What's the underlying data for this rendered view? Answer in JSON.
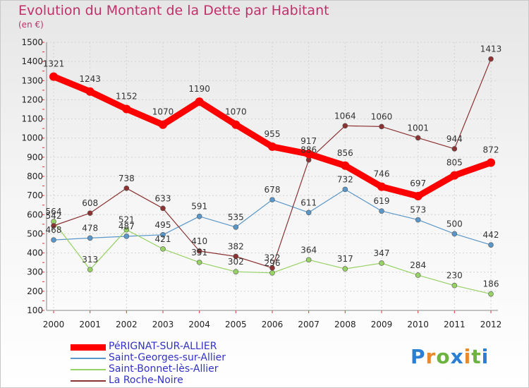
{
  "header": {
    "title": "Evolution du Montant de la Dette par Habitant",
    "unit": "(en €)"
  },
  "brand": {
    "letters": [
      "P",
      "r",
      "o",
      "x",
      "i",
      "t",
      "i"
    ],
    "colors": [
      "#2a7fd4",
      "#e8892a",
      "#6cb33f",
      "#2a7fd4",
      "#e8892a",
      "#6cb33f",
      "#2a7fd4"
    ]
  },
  "chart_data": {
    "type": "line",
    "categories": [
      "2000",
      "2001",
      "2002",
      "2003",
      "2004",
      "2005",
      "2006",
      "2007",
      "2008",
      "2009",
      "2010",
      "2011",
      "2012"
    ],
    "title": "Evolution du Montant de la Dette par Habitant",
    "ylabel": "(en €)",
    "ylim": [
      100,
      1500
    ],
    "yticks": [
      "100",
      "200",
      "300",
      "400",
      "500",
      "600",
      "700",
      "800",
      "900",
      "1000",
      "1100",
      "1200",
      "1300",
      "1400",
      "1500"
    ],
    "grid": true,
    "legend_position": "bottom-left",
    "series": [
      {
        "name": "PéRIGNAT-SUR-ALLIER",
        "color": "#ff0000",
        "values": [
          1321,
          1243,
          1152,
          1070,
          1190,
          1070,
          955,
          917,
          856,
          746,
          697,
          805,
          872
        ],
        "labels": [
          "1321",
          "1243",
          "1152",
          "1070",
          "1190",
          "1070",
          "955",
          "917",
          "856",
          "746",
          "697",
          "805",
          "872"
        ]
      },
      {
        "name": "Saint-Georges-sur-Allier",
        "color": "#5a96c8",
        "values": [
          468,
          478,
          487,
          495,
          591,
          535,
          678,
          611,
          732,
          619,
          573,
          500,
          442
        ],
        "labels": [
          "468",
          "478",
          "487",
          "495",
          "591",
          "535",
          "678",
          "611",
          "732",
          "619",
          "573",
          "500",
          "442"
        ]
      },
      {
        "name": "Saint-Bonnet-lès-Allier",
        "color": "#96d264",
        "values": [
          564,
          313,
          521,
          421,
          351,
          302,
          296,
          364,
          317,
          347,
          284,
          230,
          186
        ],
        "labels": [
          "564",
          "313",
          "521",
          "421",
          "351",
          "302",
          "296",
          "364",
          "317",
          "347",
          "284",
          "230",
          "186"
        ]
      },
      {
        "name": "La Roche-Noire",
        "color": "#8c3232",
        "values": [
          542,
          608,
          738,
          633,
          410,
          382,
          322,
          886,
          1064,
          1060,
          1001,
          944,
          1413
        ],
        "labels": [
          "542",
          "608",
          "738",
          "633",
          "410",
          "382",
          "322",
          "886",
          "1064",
          "1060",
          "1001",
          "944",
          "1413"
        ]
      }
    ]
  }
}
